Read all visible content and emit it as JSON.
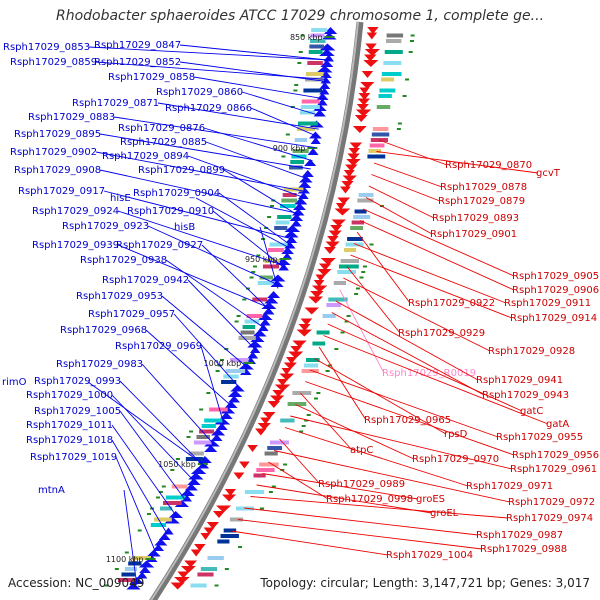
{
  "title": "Rhodobacter sphaeroides ATCC 17029 chromosome 1, complete ge...",
  "footer": {
    "accession": "Accession: NC_009049",
    "summary": "Topology: circular; Length: 3,147,721 bp; Genes: 3,017"
  },
  "colors": {
    "forward": "#0000ff",
    "reverse": "#ff0000",
    "rna": "#ff88cc",
    "backbone": "#888888"
  },
  "kbp_labels": [
    "850 kbp",
    "900 kbp",
    "950 kbp",
    "1000 kbp",
    "1050 kbp",
    "1100 kbp"
  ],
  "left_labels": [
    "Rsph17029_0853",
    "Rsph17029_0847",
    "Rsph17029_0859",
    "Rsph17029_0852",
    "Rsph17029_0858",
    "Rsph17029_0860",
    "Rsph17029_0871",
    "Rsph17029_0866",
    "Rsph17029_0883",
    "Rsph17029_0876",
    "Rsph17029_0895",
    "Rsph17029_0885",
    "Rsph17029_0902",
    "Rsph17029_0894",
    "Rsph17029_0908",
    "Rsph17029_0899",
    "Rsph17029_0917",
    "hisE",
    "Rsph17029_0904",
    "Rsph17029_0924",
    "Rsph17029_0910",
    "Rsph17029_0923",
    "hisB",
    "Rsph17029_0939",
    "Rsph17029_0927",
    "Rsph17029_0938",
    "Rsph17029_0942",
    "Rsph17029_0953",
    "Rsph17029_0957",
    "Rsph17029_0968",
    "Rsph17029_0969",
    "Rsph17029_0983",
    "rimO",
    "Rsph17029_0993",
    "Rsph17029_1000",
    "Rsph17029_1005",
    "Rsph17029_1011",
    "Rsph17029_1018",
    "Rsph17029_1019",
    "mtnA"
  ],
  "right_labels": [
    "Rsph17029_0870",
    "gcvT",
    "Rsph17029_0878",
    "Rsph17029_0879",
    "Rsph17029_0893",
    "Rsph17029_0901",
    "Rsph17029_0905",
    "Rsph17029_0906",
    "Rsph17029_0922",
    "Rsph17029_0911",
    "Rsph17029_0914",
    "Rsph17029_0929",
    "Rsph17029_0928",
    "Rsph17029_R0019",
    "Rsph17029_0941",
    "Rsph17029_0943",
    "gatC",
    "gatA",
    "Rsph17029_0965",
    "rpsD",
    "Rsph17029_0955",
    "Rsph17029_0956",
    "atpC",
    "Rsph17029_0970",
    "Rsph17029_0961",
    "Rsph17029_0971",
    "Rsph17029_0989",
    "Rsph17029_0972",
    "Rsph17029_0998",
    "groES",
    "groEL",
    "Rsph17029_0974",
    "Rsph17029_0987",
    "Rsph17029_0988",
    "Rsph17029_1004"
  ]
}
